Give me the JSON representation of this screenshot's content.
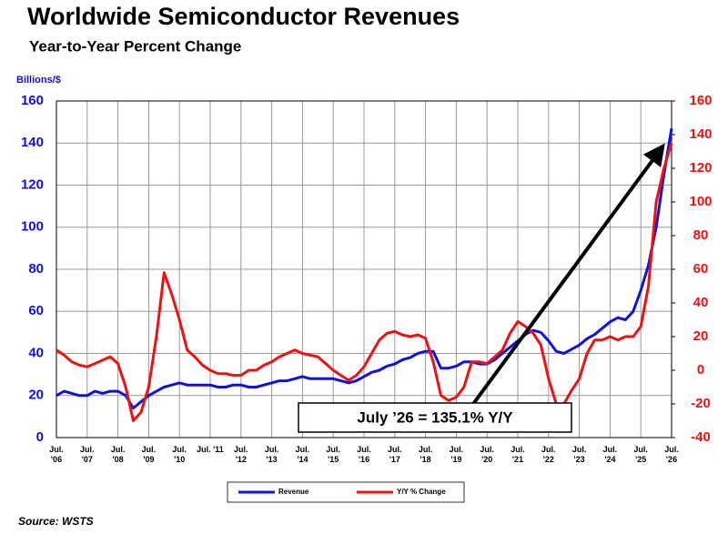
{
  "chart_data": {
    "type": "line",
    "title": "Worldwide Semiconductor Revenues",
    "subtitle": "Year-to-Year Percent Change",
    "y_label": "Billions/$",
    "source": "Source: WSTS",
    "annotation": "July ’26 = 135.1% Y/Y",
    "xlim": [
      2006.5,
      2026.5
    ],
    "xticks": [
      {
        "value": 2006.5,
        "label": "Jul. '06"
      },
      {
        "value": 2007.5,
        "label": "Jul. '07"
      },
      {
        "value": 2008.5,
        "label": "Jul. '08"
      },
      {
        "value": 2009.5,
        "label": "Jul. '09"
      },
      {
        "value": 2010.5,
        "label": "Jul. '10"
      },
      {
        "value": 2011.5,
        "label": "Jul. '11"
      },
      {
        "value": 2012.5,
        "label": "Jul. '12"
      },
      {
        "value": 2013.5,
        "label": "Jul. '13"
      },
      {
        "value": 2014.5,
        "label": "Jul. '14"
      },
      {
        "value": 2015.5,
        "label": "Jul. '15"
      },
      {
        "value": 2016.5,
        "label": "Jul. '16"
      },
      {
        "value": 2017.5,
        "label": "Jul. '17"
      },
      {
        "value": 2018.5,
        "label": "Jul. '18"
      },
      {
        "value": 2019.5,
        "label": "Jul. '19"
      },
      {
        "value": 2020.5,
        "label": "Jul. '20"
      },
      {
        "value": 2021.5,
        "label": "Jul. '21"
      },
      {
        "value": 2022.5,
        "label": "Jul. '22"
      },
      {
        "value": 2023.5,
        "label": "Jul. '23"
      },
      {
        "value": 2024.5,
        "label": "Jul. '24"
      },
      {
        "value": 2025.5,
        "label": "Jul. '25"
      },
      {
        "value": 2026.5,
        "label": "Jul. '26"
      }
    ],
    "ylim": [
      0,
      160
    ],
    "yticks": [
      0,
      20,
      40,
      60,
      80,
      100,
      120,
      140,
      160
    ],
    "y2lim": [
      -40,
      160
    ],
    "y2ticks": [
      -40,
      -20,
      0,
      20,
      40,
      60,
      80,
      100,
      120,
      140,
      160
    ],
    "grid": true,
    "x": [
      2006.5,
      2006.75,
      2007,
      2007.25,
      2007.5,
      2007.75,
      2008,
      2008.25,
      2008.5,
      2008.75,
      2009,
      2009.25,
      2009.5,
      2009.75,
      2010,
      2010.25,
      2010.5,
      2010.75,
      2011,
      2011.25,
      2011.5,
      2011.75,
      2012,
      2012.25,
      2012.5,
      2012.75,
      2013,
      2013.25,
      2013.5,
      2013.75,
      2014,
      2014.25,
      2014.5,
      2014.75,
      2015,
      2015.25,
      2015.5,
      2015.75,
      2016,
      2016.25,
      2016.5,
      2016.75,
      2017,
      2017.25,
      2017.5,
      2017.75,
      2018,
      2018.25,
      2018.5,
      2018.75,
      2019,
      2019.25,
      2019.5,
      2019.75,
      2020,
      2020.25,
      2020.5,
      2020.75,
      2021,
      2021.25,
      2021.5,
      2021.75,
      2022,
      2022.25,
      2022.5,
      2022.75,
      2023,
      2023.25,
      2023.5,
      2023.75,
      2024,
      2024.25,
      2024.5,
      2024.75,
      2025,
      2025.25,
      2025.5,
      2025.75,
      2026,
      2026.25,
      2026.5
    ],
    "series": [
      {
        "name": "Revenue",
        "color": "#1010e0",
        "axis": "y",
        "values": [
          20,
          22,
          21,
          20,
          20,
          22,
          21,
          22,
          22,
          20,
          14,
          17,
          20,
          22,
          24,
          25,
          26,
          25,
          25,
          25,
          25,
          24,
          24,
          25,
          25,
          24,
          24,
          25,
          26,
          27,
          27,
          28,
          29,
          28,
          28,
          28,
          28,
          27,
          26,
          27,
          29,
          31,
          32,
          34,
          35,
          37,
          38,
          40,
          41,
          41,
          33,
          33,
          34,
          36,
          36,
          35,
          35,
          37,
          40,
          43,
          46,
          49,
          51,
          50,
          46,
          41,
          40,
          42,
          44,
          47,
          49,
          52,
          55,
          57,
          56,
          60,
          70,
          82,
          100,
          125,
          147
        ]
      },
      {
        "name": "Y/Y % Change",
        "color": "#ee1111",
        "axis": "y2",
        "values": [
          12,
          9,
          5,
          3,
          2,
          4,
          6,
          8,
          4,
          -10,
          -30,
          -25,
          -10,
          20,
          58,
          45,
          30,
          12,
          8,
          3,
          0,
          -2,
          -2,
          -3,
          -3,
          0,
          0,
          3,
          5,
          8,
          10,
          12,
          10,
          9,
          8,
          4,
          0,
          -3,
          -6,
          -3,
          2,
          10,
          18,
          22,
          23,
          21,
          20,
          21,
          19,
          5,
          -15,
          -18,
          -16,
          -10,
          5,
          5,
          4,
          8,
          12,
          22,
          29,
          26,
          22,
          15,
          -5,
          -20,
          -20,
          -12,
          -5,
          10,
          18,
          18,
          20,
          18,
          20,
          20,
          26,
          50,
          100,
          120,
          135
        ]
      }
    ]
  }
}
